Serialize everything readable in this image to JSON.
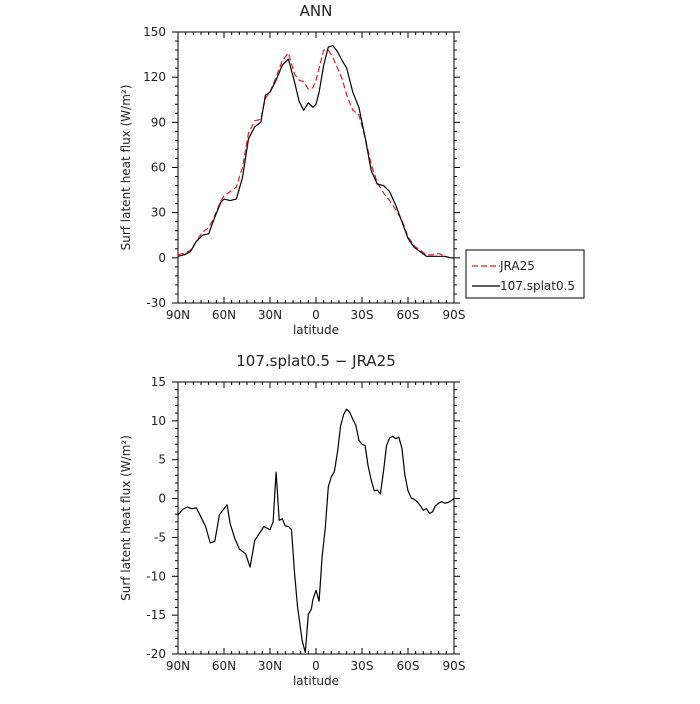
{
  "chart_data": [
    {
      "type": "line",
      "title": "ANN",
      "xlabel": "latitude",
      "ylabel": "Surf latent heat flux (W/m²)",
      "xlim": [
        90,
        -90
      ],
      "ylim": [
        -30,
        150
      ],
      "x_tick_values": [
        90,
        60,
        30,
        0,
        -30,
        -60,
        -90
      ],
      "x_tick_labels": [
        "90N",
        "60N",
        "30N",
        "0",
        "30S",
        "60S",
        "90S"
      ],
      "y_ticks": [
        -30,
        0,
        30,
        60,
        90,
        120,
        150
      ],
      "legend_position": "right-outside",
      "series": [
        {
          "name": "JRA25",
          "color": "#e02020",
          "style": "dashed",
          "x": [
            90,
            86,
            82,
            78,
            74,
            70,
            66,
            62,
            60,
            56,
            52,
            48,
            44,
            40,
            36,
            33,
            30,
            26,
            22,
            18,
            14,
            11,
            8,
            5,
            2,
            0,
            -2,
            -5,
            -8,
            -11,
            -14,
            -17,
            -20,
            -24,
            -28,
            -32,
            -36,
            -40,
            -44,
            -48,
            -52,
            -56,
            -60,
            -64,
            -68,
            -72,
            -76,
            -80,
            -84,
            -88,
            -90
          ],
          "y": [
            2,
            3,
            5,
            11,
            17,
            20,
            28,
            38,
            41,
            44,
            47,
            60,
            83,
            91,
            92,
            106,
            110,
            120,
            131,
            136,
            122,
            118,
            117,
            112,
            113,
            118,
            126,
            138,
            138,
            133,
            126,
            119,
            108,
            98,
            95,
            80,
            62,
            50,
            43,
            38,
            32,
            25,
            14,
            8,
            5,
            2,
            2,
            3,
            1,
            0,
            0
          ]
        },
        {
          "name": "107.splat0.5",
          "color": "#000000",
          "style": "solid",
          "x": [
            90,
            86,
            82,
            78,
            74,
            70,
            66,
            62,
            60,
            56,
            52,
            48,
            44,
            40,
            36,
            33,
            30,
            26,
            22,
            18,
            14,
            11,
            8,
            5,
            2,
            0,
            -2,
            -5,
            -8,
            -11,
            -14,
            -17,
            -20,
            -24,
            -28,
            -32,
            -36,
            -40,
            -44,
            -48,
            -52,
            -56,
            -60,
            -64,
            -68,
            -72,
            -76,
            -80,
            -84,
            -88,
            -90
          ],
          "y": [
            1,
            2,
            4,
            11,
            15,
            16,
            27,
            37,
            39,
            38,
            39,
            53,
            79,
            87,
            90,
            108,
            110,
            118,
            128,
            132,
            117,
            104,
            98,
            103,
            100,
            102,
            110,
            128,
            140,
            141,
            137,
            131,
            126,
            110,
            100,
            80,
            58,
            49,
            48,
            44,
            35,
            24,
            13,
            7,
            4,
            1,
            1,
            1,
            1,
            0,
            0
          ]
        }
      ]
    },
    {
      "type": "line",
      "title": "107.splat0.5 − JRA25",
      "xlabel": "latitude",
      "ylabel": "Surf latent heat flux (W/m²)",
      "xlim": [
        90,
        -90
      ],
      "ylim": [
        -20,
        15
      ],
      "x_tick_values": [
        90,
        60,
        30,
        0,
        -30,
        -60,
        -90
      ],
      "x_tick_labels": [
        "90N",
        "60N",
        "30N",
        "0",
        "30S",
        "60S",
        "90S"
      ],
      "y_ticks": [
        -20,
        -15,
        -10,
        -5,
        0,
        5,
        10,
        15
      ],
      "series": [
        {
          "color": "#000000",
          "style": "solid",
          "x": [
            90,
            87,
            84,
            81,
            78,
            75,
            72,
            69,
            66,
            63,
            60,
            58,
            56,
            53,
            50,
            46,
            43,
            40,
            37,
            34,
            32,
            30,
            28,
            26,
            24,
            22,
            20,
            18,
            16,
            14,
            12,
            9,
            7,
            5,
            3,
            2,
            0,
            -2,
            -4,
            -6,
            -8,
            -10,
            -12,
            -14,
            -16,
            -18,
            -20,
            -22,
            -24,
            -26,
            -28,
            -30,
            -32,
            -34,
            -36,
            -38,
            -40,
            -42,
            -44,
            -46,
            -48,
            -50,
            -52,
            -54,
            -56,
            -58,
            -60,
            -62,
            -64,
            -66,
            -68,
            -70,
            -72,
            -74,
            -76,
            -78,
            -80,
            -82,
            -84,
            -86,
            -88,
            -90
          ],
          "y": [
            -2.1,
            -1.4,
            -1.1,
            -1.3,
            -1.2,
            -2.4,
            -3.6,
            -5.7,
            -5.5,
            -2.1,
            -1.3,
            -0.8,
            -3.2,
            -5.1,
            -6.5,
            -7.1,
            -8.8,
            -5.4,
            -4.5,
            -3.6,
            -3.8,
            -4.0,
            -3.0,
            3.4,
            -2.8,
            -2.6,
            -3.5,
            -3.6,
            -4.0,
            -9.5,
            -14.0,
            -18.3,
            -19.8,
            -14.9,
            -14.2,
            -13.0,
            -11.8,
            -13.2,
            -7.5,
            -3.9,
            1.5,
            2.8,
            3.5,
            6.0,
            9.3,
            10.8,
            11.5,
            11.1,
            10.2,
            9.4,
            7.5,
            7.0,
            6.8,
            4.2,
            2.4,
            1.0,
            1.1,
            0.6,
            3.5,
            6.8,
            7.8,
            8.0,
            7.7,
            7.9,
            6.5,
            3.0,
            1.0,
            0.1,
            -0.1,
            -0.4,
            -0.9,
            -1.5,
            -1.3,
            -1.9,
            -1.7,
            -0.9,
            -0.6,
            -0.4,
            -0.6,
            -0.5,
            -0.3,
            0.0
          ]
        }
      ]
    }
  ]
}
